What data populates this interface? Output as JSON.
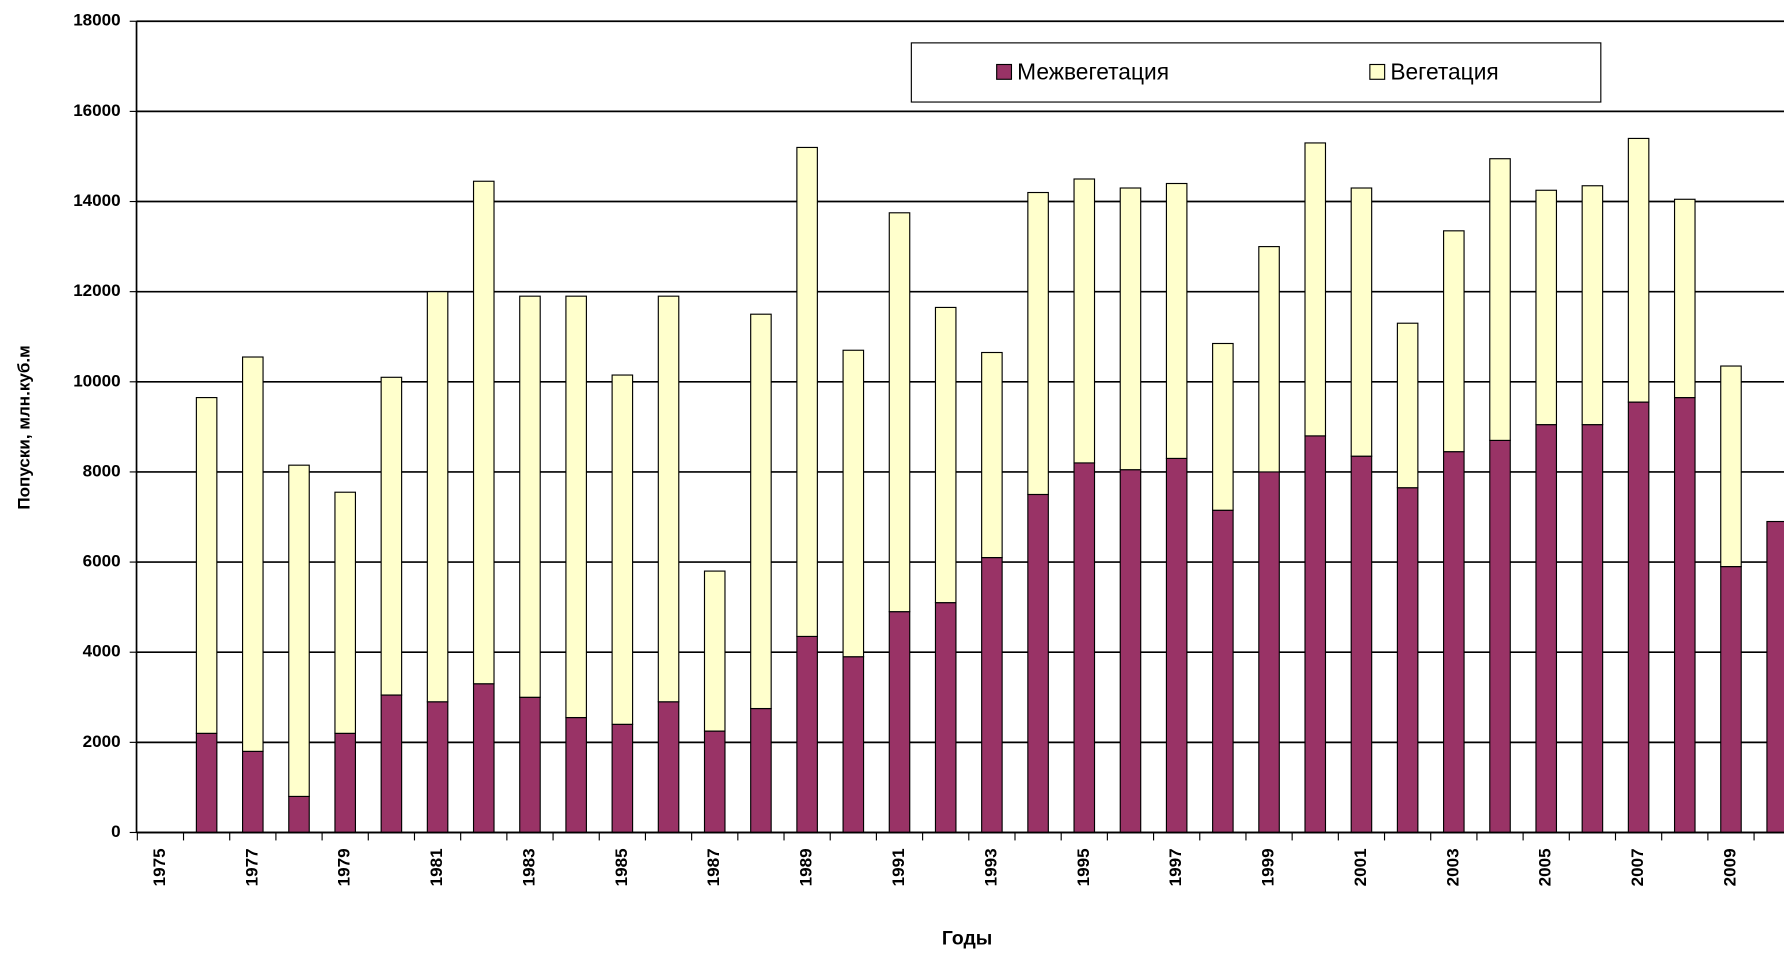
{
  "chart_data": {
    "type": "stacked_bar",
    "x_label": "Годы",
    "y_label": "Попуски, млн.куб.м",
    "categories": [
      "1975",
      null,
      "1977",
      null,
      "1979",
      null,
      "1981",
      null,
      "1983",
      null,
      "1985",
      null,
      "1987",
      null,
      "1989",
      null,
      "1991",
      null,
      "1993",
      null,
      "1995",
      null,
      "1997",
      null,
      "1999",
      null,
      "2001",
      null,
      "2003",
      null,
      "2005",
      null,
      "2007",
      null,
      "2009",
      null
    ],
    "series": [
      {
        "name": "Межвегетация",
        "color": "#993366",
        "values": [
          null,
          2200,
          1800,
          800,
          2200,
          3050,
          2900,
          3300,
          3000,
          2550,
          2400,
          2900,
          2250,
          2750,
          4350,
          3900,
          4900,
          5100,
          6100,
          7500,
          8200,
          8050,
          8300,
          7150,
          8000,
          8800,
          8350,
          7650,
          8450,
          8700,
          9050,
          9050,
          9550,
          9650,
          5900,
          6900
        ]
      },
      {
        "name": "Вегетация",
        "color": "#ffffcc",
        "values": [
          null,
          7450,
          8750,
          7350,
          5350,
          7050,
          9100,
          11150,
          8900,
          9350,
          7750,
          9000,
          3550,
          8750,
          10850,
          6800,
          8850,
          6550,
          4550,
          6700,
          6300,
          6250,
          6100,
          3700,
          5000,
          6500,
          5950,
          3650,
          4900,
          6250,
          5200,
          5300,
          5850,
          4400,
          4450,
          null
        ]
      }
    ],
    "ylim": [
      0,
      18000
    ],
    "yticks": [
      0,
      2000,
      4000,
      6000,
      8000,
      10000,
      12000,
      14000,
      16000,
      18000
    ],
    "grid": true
  }
}
